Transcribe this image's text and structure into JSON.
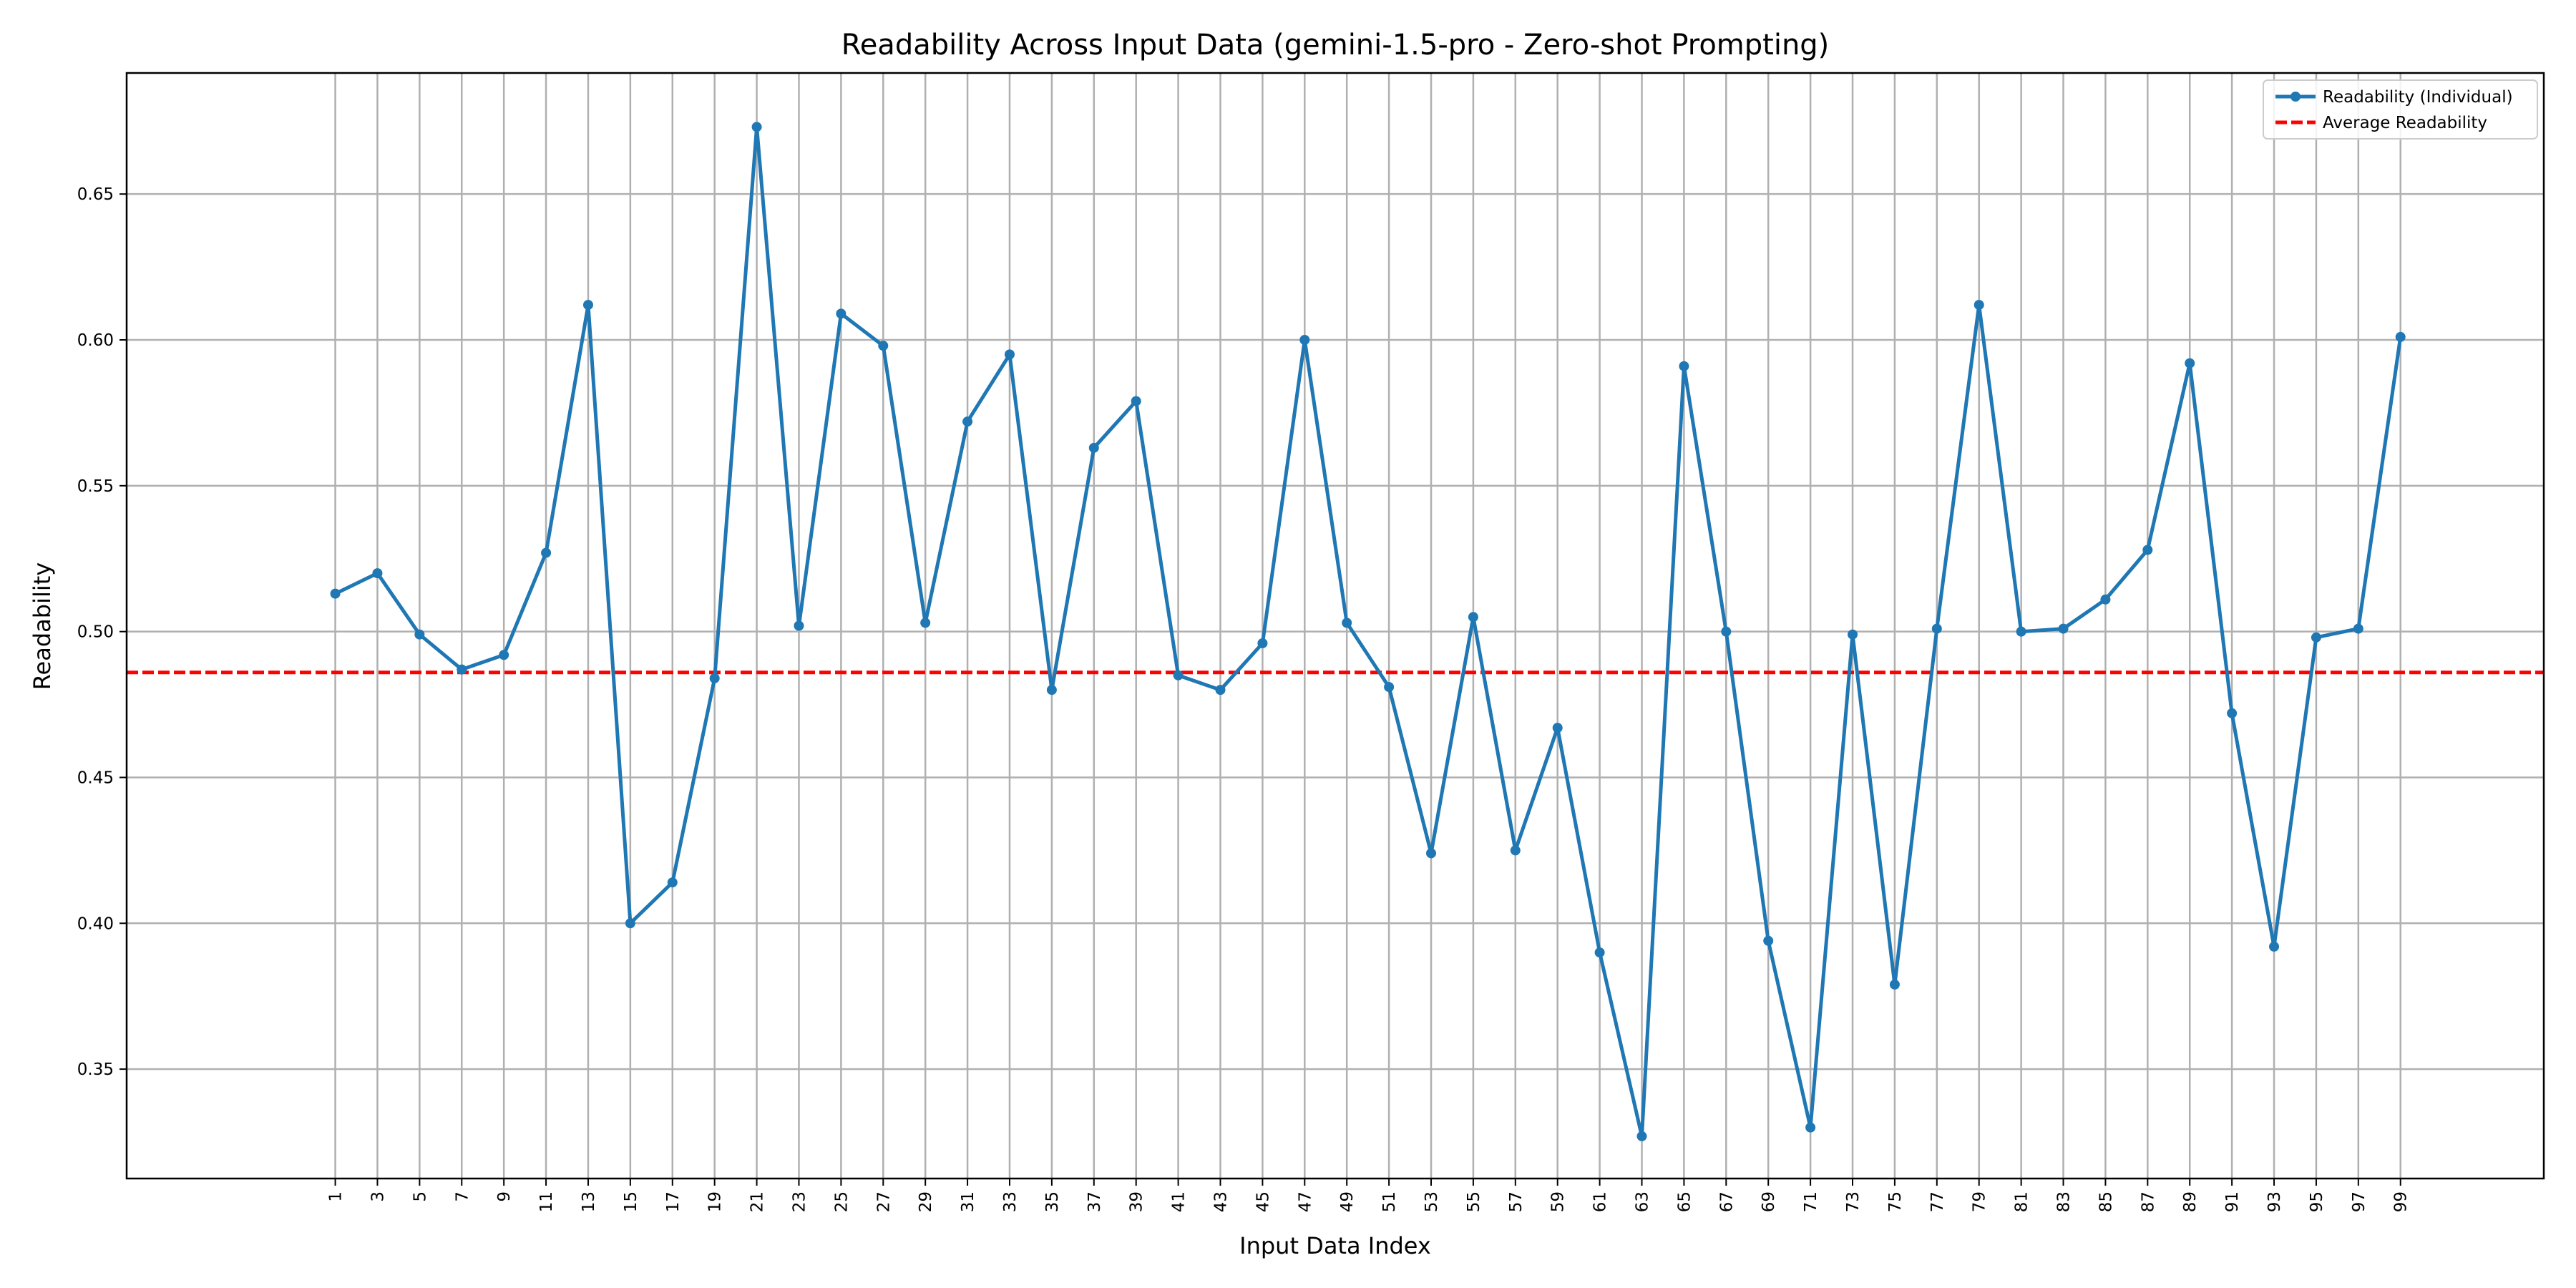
{
  "chart_data": {
    "type": "line",
    "title": "Readability Across Input Data (gemini-1.5-pro - Zero-shot Prompting)",
    "xlabel": "Input Data Index",
    "ylabel": "Readability",
    "x": [
      1,
      3,
      5,
      7,
      9,
      11,
      13,
      15,
      17,
      19,
      21,
      23,
      25,
      27,
      29,
      31,
      33,
      35,
      37,
      39,
      41,
      43,
      45,
      47,
      49,
      51,
      53,
      55,
      57,
      59,
      61,
      63,
      65,
      67,
      69,
      71,
      73,
      75,
      77,
      79,
      81,
      83,
      85,
      87,
      89,
      91,
      93,
      95,
      97,
      99
    ],
    "x_tick_labels": [
      "1",
      "3",
      "5",
      "7",
      "9",
      "11",
      "13",
      "15",
      "17",
      "19",
      "21",
      "23",
      "25",
      "27",
      "29",
      "31",
      "33",
      "35",
      "37",
      "39",
      "41",
      "43",
      "45",
      "47",
      "49",
      "51",
      "53",
      "55",
      "57",
      "59",
      "61",
      "63",
      "65",
      "67",
      "69",
      "71",
      "73",
      "75",
      "77",
      "79",
      "81",
      "83",
      "85",
      "87",
      "89",
      "91",
      "93",
      "95",
      "97",
      "99"
    ],
    "xlim": [
      -8.9,
      105.8
    ],
    "ylim": [
      0.3125,
      0.6915
    ],
    "y_ticks": [
      0.35,
      0.4,
      0.45,
      0.5,
      0.55,
      0.6,
      0.65
    ],
    "y_tick_labels": [
      "0.35",
      "0.40",
      "0.45",
      "0.50",
      "0.55",
      "0.60",
      "0.65"
    ],
    "grid": true,
    "legend_position": "top-right",
    "series": [
      {
        "name": "Readability (Individual)",
        "color": "#1f77b4",
        "style": "solid-with-markers",
        "values": [
          0.513,
          0.52,
          0.499,
          0.487,
          0.492,
          0.527,
          0.612,
          0.4,
          0.414,
          0.484,
          0.673,
          0.502,
          0.609,
          0.598,
          0.503,
          0.572,
          0.595,
          0.48,
          0.563,
          0.579,
          0.485,
          0.48,
          0.496,
          0.6,
          0.503,
          0.481,
          0.424,
          0.505,
          0.425,
          0.467,
          0.39,
          0.327,
          0.591,
          0.5,
          0.394,
          0.33,
          0.499,
          0.379,
          0.501,
          0.612,
          0.5,
          0.501,
          0.511,
          0.528,
          0.592,
          0.472,
          0.392,
          0.498,
          0.501,
          0.601
        ]
      },
      {
        "name": "Average Readability",
        "color": "#ff0000",
        "style": "dashed",
        "value": 0.486
      }
    ]
  }
}
